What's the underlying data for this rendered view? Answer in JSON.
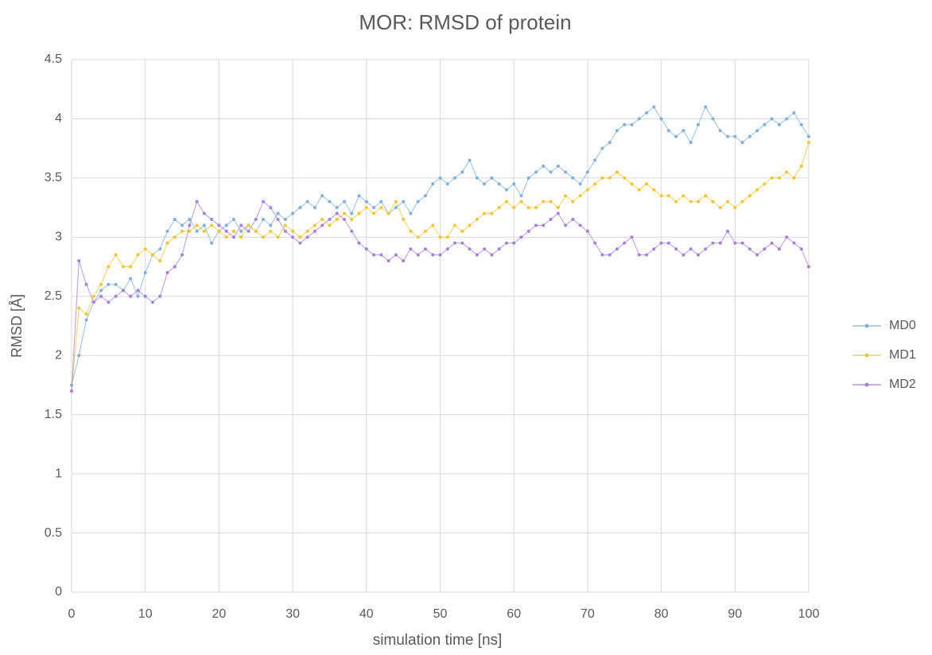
{
  "chart_data": {
    "type": "line",
    "title": "MOR: RMSD of protein",
    "xlabel": "simulation time [ns]",
    "ylabel": "RMSD [Å]",
    "x": [
      0,
      1,
      2,
      3,
      4,
      5,
      6,
      7,
      8,
      9,
      10,
      11,
      12,
      13,
      14,
      15,
      16,
      17,
      18,
      19,
      20,
      21,
      22,
      23,
      24,
      25,
      26,
      27,
      28,
      29,
      30,
      31,
      32,
      33,
      34,
      35,
      36,
      37,
      38,
      39,
      40,
      41,
      42,
      43,
      44,
      45,
      46,
      47,
      48,
      49,
      50,
      51,
      52,
      53,
      54,
      55,
      56,
      57,
      58,
      59,
      60,
      61,
      62,
      63,
      64,
      65,
      66,
      67,
      68,
      69,
      70,
      71,
      72,
      73,
      74,
      75,
      76,
      77,
      78,
      79,
      80,
      81,
      82,
      83,
      84,
      85,
      86,
      87,
      88,
      89,
      90,
      91,
      92,
      93,
      94,
      95,
      96,
      97,
      98,
      99,
      100
    ],
    "series": [
      {
        "name": "MD0",
        "color": "#7fb0d8",
        "values": [
          1.75,
          2.0,
          2.3,
          2.45,
          2.55,
          2.6,
          2.6,
          2.55,
          2.65,
          2.5,
          2.7,
          2.85,
          2.9,
          3.05,
          3.15,
          3.1,
          3.15,
          3.05,
          3.1,
          2.95,
          3.05,
          3.1,
          3.15,
          3.05,
          3.1,
          3.05,
          3.15,
          3.1,
          3.2,
          3.15,
          3.2,
          3.25,
          3.3,
          3.25,
          3.35,
          3.3,
          3.25,
          3.3,
          3.2,
          3.35,
          3.3,
          3.25,
          3.3,
          3.2,
          3.25,
          3.3,
          3.2,
          3.3,
          3.35,
          3.45,
          3.5,
          3.45,
          3.5,
          3.55,
          3.65,
          3.5,
          3.45,
          3.5,
          3.45,
          3.4,
          3.45,
          3.35,
          3.5,
          3.55,
          3.6,
          3.55,
          3.6,
          3.55,
          3.5,
          3.45,
          3.55,
          3.65,
          3.75,
          3.8,
          3.9,
          3.95,
          3.95,
          4.0,
          4.05,
          4.1,
          4.0,
          3.9,
          3.85,
          3.9,
          3.8,
          3.95,
          4.1,
          4.0,
          3.9,
          3.85,
          3.85,
          3.8,
          3.85,
          3.9,
          3.95,
          4.0,
          3.95,
          4.0,
          4.05,
          3.95,
          3.85
        ]
      },
      {
        "name": "MD1",
        "color": "#f2c530",
        "values": [
          1.7,
          2.4,
          2.35,
          2.5,
          2.6,
          2.75,
          2.85,
          2.75,
          2.75,
          2.85,
          2.9,
          2.85,
          2.8,
          2.95,
          3.0,
          3.05,
          3.05,
          3.1,
          3.05,
          3.1,
          3.05,
          3.0,
          3.05,
          3.0,
          3.1,
          3.05,
          3.0,
          3.05,
          3.0,
          3.1,
          3.05,
          3.0,
          3.05,
          3.1,
          3.15,
          3.1,
          3.15,
          3.2,
          3.15,
          3.2,
          3.25,
          3.2,
          3.25,
          3.2,
          3.3,
          3.15,
          3.05,
          3.0,
          3.05,
          3.1,
          3.0,
          3.0,
          3.1,
          3.05,
          3.1,
          3.15,
          3.2,
          3.2,
          3.25,
          3.3,
          3.25,
          3.3,
          3.25,
          3.25,
          3.3,
          3.3,
          3.25,
          3.35,
          3.3,
          3.35,
          3.4,
          3.45,
          3.5,
          3.5,
          3.55,
          3.5,
          3.45,
          3.4,
          3.45,
          3.4,
          3.35,
          3.35,
          3.3,
          3.35,
          3.3,
          3.3,
          3.35,
          3.3,
          3.25,
          3.3,
          3.25,
          3.3,
          3.35,
          3.4,
          3.45,
          3.5,
          3.5,
          3.55,
          3.5,
          3.6,
          3.8
        ]
      },
      {
        "name": "MD2",
        "color": "#a77fd8",
        "values": [
          1.7,
          2.8,
          2.6,
          2.45,
          2.5,
          2.45,
          2.5,
          2.55,
          2.5,
          2.55,
          2.5,
          2.45,
          2.5,
          2.7,
          2.75,
          2.85,
          3.1,
          3.3,
          3.2,
          3.15,
          3.1,
          3.05,
          3.0,
          3.1,
          3.05,
          3.15,
          3.3,
          3.25,
          3.15,
          3.05,
          3.0,
          2.95,
          3.0,
          3.05,
          3.1,
          3.15,
          3.2,
          3.15,
          3.05,
          2.95,
          2.9,
          2.85,
          2.85,
          2.8,
          2.85,
          2.8,
          2.9,
          2.85,
          2.9,
          2.85,
          2.85,
          2.9,
          2.95,
          2.95,
          2.9,
          2.85,
          2.9,
          2.85,
          2.9,
          2.95,
          2.95,
          3.0,
          3.05,
          3.1,
          3.1,
          3.15,
          3.2,
          3.1,
          3.15,
          3.1,
          3.05,
          2.95,
          2.85,
          2.85,
          2.9,
          2.95,
          3.0,
          2.85,
          2.85,
          2.9,
          2.95,
          2.95,
          2.9,
          2.85,
          2.9,
          2.85,
          2.9,
          2.95,
          2.95,
          3.05,
          2.95,
          2.95,
          2.9,
          2.85,
          2.9,
          2.95,
          2.9,
          3.0,
          2.95,
          2.9,
          2.75
        ]
      }
    ],
    "xlim": [
      0,
      100
    ],
    "xticks": [
      0,
      10,
      20,
      30,
      40,
      50,
      60,
      70,
      80,
      90,
      100
    ],
    "ylim": [
      0,
      4.5
    ],
    "yticks": [
      0,
      0.5,
      1,
      1.5,
      2,
      2.5,
      3,
      3.5,
      4,
      4.5
    ],
    "grid": true,
    "legend": "right"
  }
}
